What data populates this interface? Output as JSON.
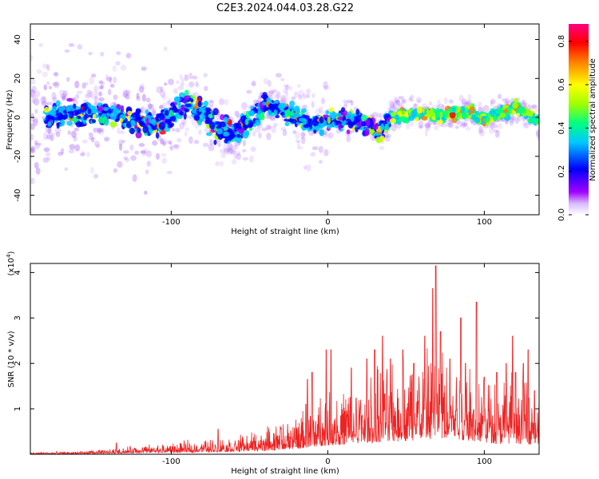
{
  "title": "C2E3.2024.044.03.28.G22",
  "chart_data": [
    {
      "type": "heatmap",
      "xlabel": "Height of straight line (km)",
      "ylabel": "Frequency (Hz)",
      "xlim": [
        -190,
        135
      ],
      "ylim": [
        -50,
        48
      ],
      "xticks": [
        -100,
        0,
        100
      ],
      "yticks": [
        -40,
        -20,
        0,
        20,
        40
      ],
      "colorbar": {
        "label": "Normalized spectral amplitude",
        "range": [
          0.0,
          0.88
        ],
        "ticks": [
          0.0,
          0.2,
          0.4,
          0.6,
          0.8
        ],
        "colors": [
          "#ffffff",
          "#a000ff",
          "#0000ff",
          "#00c8ff",
          "#00ff80",
          "#a0ff00",
          "#ffff00",
          "#ff8000",
          "#ff0000",
          "#ff0080"
        ]
      },
      "ridge_center": [
        [
          -190,
          0
        ],
        [
          -170,
          1
        ],
        [
          -150,
          2
        ],
        [
          -130,
          1
        ],
        [
          -120,
          -3
        ],
        [
          -110,
          -4
        ],
        [
          -100,
          2
        ],
        [
          -90,
          8
        ],
        [
          -80,
          2
        ],
        [
          -70,
          -6
        ],
        [
          -60,
          -8
        ],
        [
          -50,
          -2
        ],
        [
          -40,
          7
        ],
        [
          -30,
          4
        ],
        [
          -20,
          0
        ],
        [
          -10,
          -3
        ],
        [
          0,
          -2
        ],
        [
          10,
          -1
        ],
        [
          20,
          -2
        ],
        [
          30,
          -6
        ],
        [
          35,
          -7
        ],
        [
          40,
          0
        ],
        [
          50,
          1
        ],
        [
          60,
          2
        ],
        [
          70,
          1
        ],
        [
          80,
          2
        ],
        [
          90,
          3
        ],
        [
          100,
          -1
        ],
        [
          110,
          2
        ],
        [
          120,
          5
        ],
        [
          135,
          -2
        ]
      ]
    },
    {
      "type": "line",
      "xlabel": "Height of straight line (km)",
      "ylabel": "SNR (10 * v/v)",
      "yunit": "(x10",
      "yunit_exp": "4",
      "yunit_close": ")",
      "xlim": [
        -190,
        135
      ],
      "ylim": [
        0,
        4.2
      ],
      "xticks": [
        -100,
        0,
        100
      ],
      "yticks": [
        1,
        2,
        3,
        4
      ],
      "color": "#ee2222",
      "envelope": [
        [
          -190,
          0.04
        ],
        [
          -160,
          0.06
        ],
        [
          -140,
          0.1
        ],
        [
          -120,
          0.18
        ],
        [
          -100,
          0.22
        ],
        [
          -80,
          0.3
        ],
        [
          -60,
          0.35
        ],
        [
          -40,
          0.5
        ],
        [
          -20,
          0.75
        ],
        [
          -10,
          1.0
        ],
        [
          0,
          1.3
        ],
        [
          10,
          1.35
        ],
        [
          20,
          1.5
        ],
        [
          30,
          1.7
        ],
        [
          40,
          1.8
        ],
        [
          50,
          1.9
        ],
        [
          60,
          2.1
        ],
        [
          70,
          2.2
        ],
        [
          80,
          2.1
        ],
        [
          90,
          2.0
        ],
        [
          100,
          1.7
        ],
        [
          110,
          1.5
        ],
        [
          120,
          1.6
        ],
        [
          130,
          1.4
        ],
        [
          135,
          1.3
        ]
      ],
      "peaks": [
        [
          -135,
          0.25
        ],
        [
          -70,
          0.55
        ],
        [
          -30,
          0.55
        ],
        [
          -14,
          1.1
        ],
        [
          -13,
          1.65
        ],
        [
          -10,
          1.8
        ],
        [
          -1,
          2.3
        ],
        [
          2,
          2.3
        ],
        [
          15,
          1.9
        ],
        [
          25,
          2.1
        ],
        [
          30,
          2.3
        ],
        [
          35,
          2.6
        ],
        [
          40,
          2.1
        ],
        [
          48,
          2.3
        ],
        [
          55,
          2.0
        ],
        [
          62,
          2.6
        ],
        [
          67,
          3.65
        ],
        [
          69,
          4.15
        ],
        [
          72,
          2.7
        ],
        [
          78,
          2.1
        ],
        [
          85,
          3.0
        ],
        [
          88,
          2.0
        ],
        [
          95,
          3.35
        ],
        [
          100,
          1.7
        ],
        [
          108,
          1.8
        ],
        [
          114,
          2.0
        ],
        [
          118,
          2.6
        ],
        [
          120,
          1.8
        ],
        [
          125,
          2.0
        ],
        [
          128,
          2.3
        ],
        [
          132,
          1.4
        ]
      ]
    }
  ]
}
